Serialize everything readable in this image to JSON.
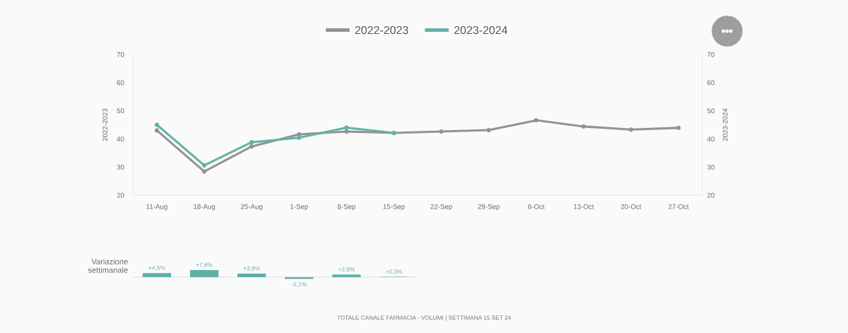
{
  "chart_data": [
    {
      "type": "line",
      "categories": [
        "11-Aug",
        "18-Aug",
        "25-Aug",
        "1-Sep",
        "8-Sep",
        "15-Sep",
        "22-Sep",
        "29-Sep",
        "6-Oct",
        "13-Oct",
        "20-Oct",
        "27-Oct"
      ],
      "series": [
        {
          "name": "2022-2023",
          "color": "#939393",
          "values": [
            43.0,
            28.4,
            37.3,
            41.6,
            42.6,
            42.1,
            42.6,
            43.1,
            46.6,
            44.4,
            43.3,
            43.9
          ]
        },
        {
          "name": "2023-2024",
          "color": "#62b3a8",
          "axis": "y2",
          "values": [
            45.0,
            30.6,
            38.8,
            40.4,
            44.0,
            42.1,
            null,
            null,
            null,
            null,
            null,
            null
          ]
        }
      ],
      "ylabel": "2022-2023",
      "y2label": "2023-2024",
      "ylim": [
        20,
        70
      ],
      "yticks": [
        20,
        30,
        40,
        50,
        60,
        70
      ],
      "y2lim": [
        20,
        70
      ],
      "y2ticks": [
        20,
        30,
        40,
        50,
        60,
        70
      ],
      "legend": "top",
      "marker": "circle",
      "line_style": "solid",
      "annotations": [
        "TOTALE CANALE FARMACIA - VOLUMI | SETTIMANA 15 SET 24"
      ]
    },
    {
      "type": "bar",
      "categories": [
        "11-Aug",
        "18-Aug",
        "25-Aug",
        "1-Sep",
        "8-Sep",
        "15-Sep"
      ],
      "values": [
        4.5,
        7.8,
        3.9,
        -2.1,
        2.8,
        0.3
      ],
      "value_labels": [
        "+4,5%",
        "+7,8%",
        "+3,9%",
        "-2,1%",
        "+2,8%",
        "+0,3%"
      ],
      "color": "#5fb0a5",
      "ylabel": "Variazione settimanale",
      "tick_labels": false
    }
  ]
}
